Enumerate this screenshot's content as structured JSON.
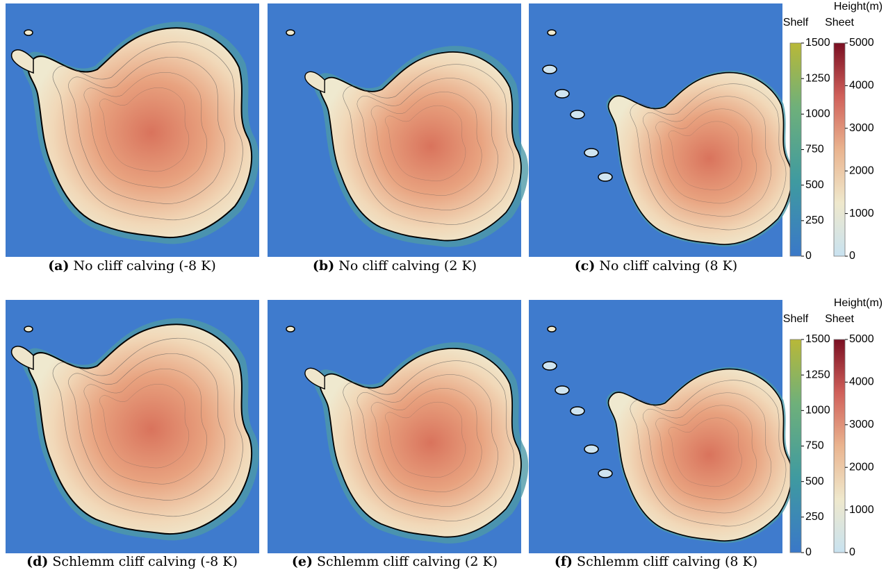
{
  "panels": [
    {
      "label": "(a)",
      "caption": "No cliff calving (-8 K)"
    },
    {
      "label": "(b)",
      "caption": "No cliff calving (2 K)"
    },
    {
      "label": "(c)",
      "caption": "No cliff calving (8 K)"
    },
    {
      "label": "(d)",
      "caption": "Schlemm cliff calving (-8 K)"
    },
    {
      "label": "(e)",
      "caption": "Schlemm cliff calving (2 K)"
    },
    {
      "label": "(f)",
      "caption": "Schlemm cliff calving (8 K)"
    }
  ],
  "colorbars": [
    {
      "title": "Height(m)",
      "shelf": {
        "label": "Shelf",
        "lim": [
          0,
          1500
        ],
        "ticks": [
          0,
          250,
          500,
          750,
          1000,
          1250,
          1500
        ]
      },
      "sheet": {
        "label": "Sheet",
        "lim": [
          0,
          5000
        ],
        "ticks": [
          0,
          1000,
          2000,
          3000,
          4000,
          5000
        ]
      }
    },
    {
      "title": "Height(m)",
      "shelf": {
        "label": "Shelf",
        "lim": [
          0,
          1500
        ],
        "ticks": [
          0,
          250,
          500,
          750,
          1000,
          1250,
          1500
        ]
      },
      "sheet": {
        "label": "Sheet",
        "lim": [
          0,
          5000
        ],
        "ticks": [
          0,
          1000,
          2000,
          3000,
          4000,
          5000
        ]
      }
    }
  ]
}
